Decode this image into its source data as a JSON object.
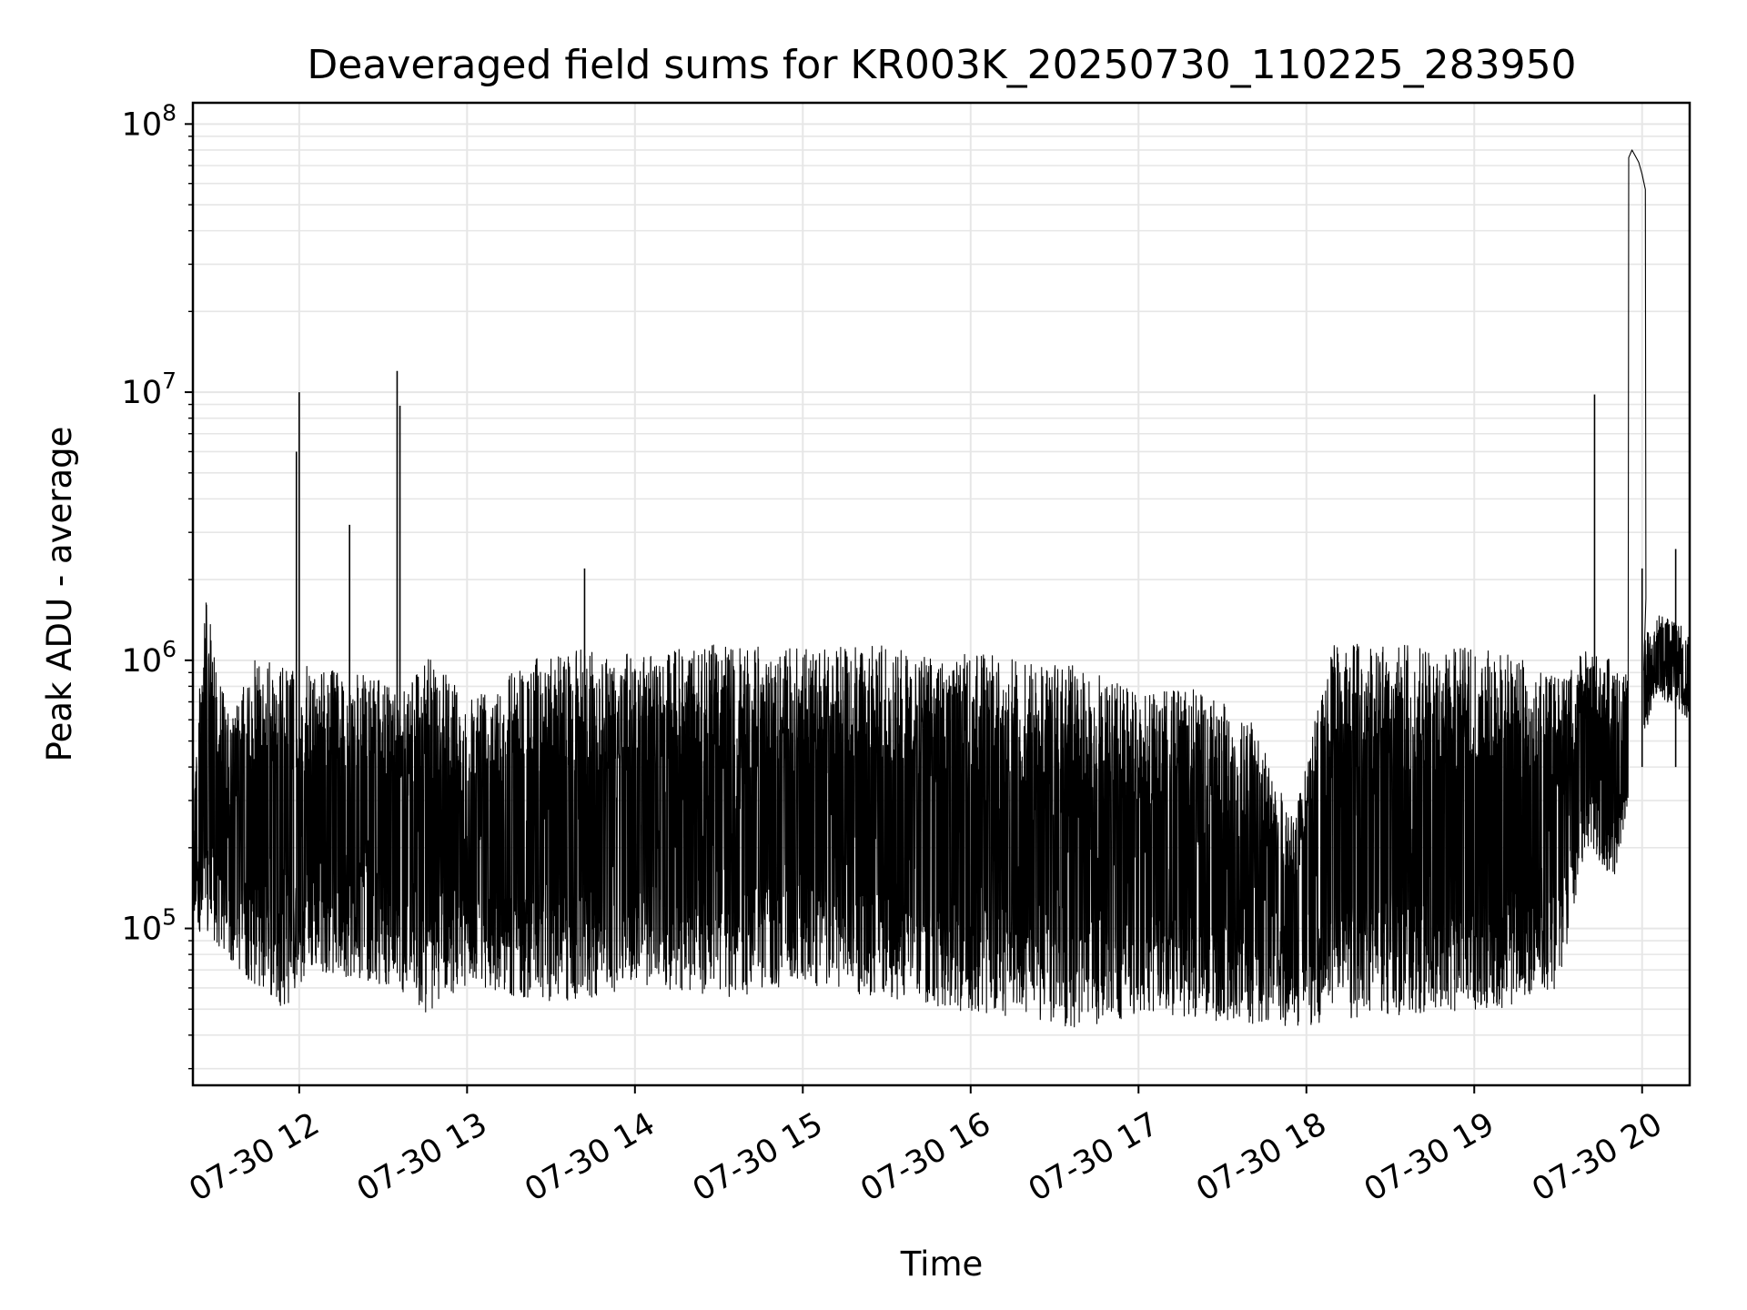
{
  "chart_data": {
    "type": "line",
    "title": "Deaveraged field sums for KR003K_20250730_110225_283950",
    "xlabel": "Time",
    "ylabel": "Peak ADU - average",
    "y_scale": "log",
    "ylim": [
      26000,
      120000000
    ],
    "xlim": [
      "2025-07-30 11:22",
      "2025-07-30 20:17"
    ],
    "grid": true,
    "line_color": "#000000",
    "grid_color": "#e6e6e6",
    "x_ticks": [
      {
        "label": "07-30 12",
        "t": "2025-07-30 12:00"
      },
      {
        "label": "07-30 13",
        "t": "2025-07-30 13:00"
      },
      {
        "label": "07-30 14",
        "t": "2025-07-30 14:00"
      },
      {
        "label": "07-30 15",
        "t": "2025-07-30 15:00"
      },
      {
        "label": "07-30 16",
        "t": "2025-07-30 16:00"
      },
      {
        "label": "07-30 17",
        "t": "2025-07-30 17:00"
      },
      {
        "label": "07-30 18",
        "t": "2025-07-30 18:00"
      },
      {
        "label": "07-30 19",
        "t": "2025-07-30 19:00"
      },
      {
        "label": "07-30 20",
        "t": "2025-07-30 20:00"
      }
    ],
    "y_ticks": [
      {
        "base": "10",
        "exp": "5",
        "value": 100000
      },
      {
        "base": "10",
        "exp": "6",
        "value": 1000000
      },
      {
        "base": "10",
        "exp": "7",
        "value": 10000000
      },
      {
        "base": "10",
        "exp": "8",
        "value": 100000000
      }
    ],
    "envelope": [
      {
        "t": "2025-07-30 11:22",
        "low": 110000,
        "high": 290000
      },
      {
        "t": "2025-07-30 11:26",
        "low": 90000,
        "high": 1800000
      },
      {
        "t": "2025-07-30 11:35",
        "low": 75000,
        "high": 600000
      },
      {
        "t": "2025-07-30 11:45",
        "low": 60000,
        "high": 1050000
      },
      {
        "t": "2025-07-30 11:55",
        "low": 50000,
        "high": 950000
      },
      {
        "t": "2025-07-30 12:05",
        "low": 70000,
        "high": 950000
      },
      {
        "t": "2025-07-30 12:20",
        "low": 65000,
        "high": 900000
      },
      {
        "t": "2025-07-30 12:35",
        "low": 60000,
        "high": 800000
      },
      {
        "t": "2025-07-30 12:45",
        "low": 48000,
        "high": 1050000
      },
      {
        "t": "2025-07-30 13:00",
        "low": 62000,
        "high": 750000
      },
      {
        "t": "2025-07-30 13:20",
        "low": 55000,
        "high": 1000000
      },
      {
        "t": "2025-07-30 13:40",
        "low": 52000,
        "high": 1100000
      },
      {
        "t": "2025-07-30 14:00",
        "low": 62000,
        "high": 1050000
      },
      {
        "t": "2025-07-30 14:30",
        "low": 55000,
        "high": 1150000
      },
      {
        "t": "2025-07-30 15:00",
        "low": 60000,
        "high": 1100000
      },
      {
        "t": "2025-07-30 15:30",
        "low": 55000,
        "high": 1150000
      },
      {
        "t": "2025-07-30 15:45",
        "low": 52000,
        "high": 1050000
      },
      {
        "t": "2025-07-30 16:00",
        "low": 48000,
        "high": 1100000
      },
      {
        "t": "2025-07-30 16:20",
        "low": 46000,
        "high": 1000000
      },
      {
        "t": "2025-07-30 16:40",
        "low": 42000,
        "high": 950000
      },
      {
        "t": "2025-07-30 17:00",
        "low": 48000,
        "high": 750000
      },
      {
        "t": "2025-07-30 17:20",
        "low": 46000,
        "high": 800000
      },
      {
        "t": "2025-07-30 17:40",
        "low": 44000,
        "high": 600000
      },
      {
        "t": "2025-07-30 17:55",
        "low": 42000,
        "high": 280000
      },
      {
        "t": "2025-07-30 18:10",
        "low": 46000,
        "high": 1150000
      },
      {
        "t": "2025-07-30 18:40",
        "low": 48000,
        "high": 1150000
      },
      {
        "t": "2025-07-30 19:10",
        "low": 50000,
        "high": 1100000
      },
      {
        "t": "2025-07-30 19:30",
        "low": 60000,
        "high": 850000
      },
      {
        "t": "2025-07-30 19:40",
        "low": 200000,
        "high": 1100000
      },
      {
        "t": "2025-07-30 19:50",
        "low": 150000,
        "high": 1000000
      },
      {
        "t": "2025-07-30 19:55",
        "low": 300000,
        "high": 900000
      },
      {
        "t": "2025-07-30 20:05",
        "low": 750000,
        "high": 1500000
      },
      {
        "t": "2025-07-30 20:17",
        "low": 600000,
        "high": 1300000
      }
    ],
    "spikes": [
      {
        "t": "2025-07-30 11:59",
        "value": 6000000
      },
      {
        "t": "2025-07-30 12:00",
        "value": 10000000
      },
      {
        "t": "2025-07-30 12:18",
        "value": 3200000
      },
      {
        "t": "2025-07-30 12:35",
        "value": 12000000
      },
      {
        "t": "2025-07-30 12:36",
        "value": 8900000
      },
      {
        "t": "2025-07-30 13:42",
        "value": 2200000
      },
      {
        "t": "2025-07-30 19:43",
        "value": 9800000
      },
      {
        "t": "2025-07-30 20:00",
        "value": 2200000
      },
      {
        "t": "2025-07-30 20:12",
        "value": 2600000
      }
    ],
    "plateau": [
      {
        "t": "2025-07-30 19:55",
        "value": 900000
      },
      {
        "t": "2025-07-30 19:55",
        "value": 75000000
      },
      {
        "t": "2025-07-30 19:56",
        "value": 80000000
      },
      {
        "t": "2025-07-30 19:57",
        "value": 76000000
      },
      {
        "t": "2025-07-30 19:58",
        "value": 72000000
      },
      {
        "t": "2025-07-30 19:59",
        "value": 65000000
      },
      {
        "t": "2025-07-30 20:00",
        "value": 57000000
      },
      {
        "t": "2025-07-30 20:00",
        "value": 1700000
      }
    ]
  }
}
